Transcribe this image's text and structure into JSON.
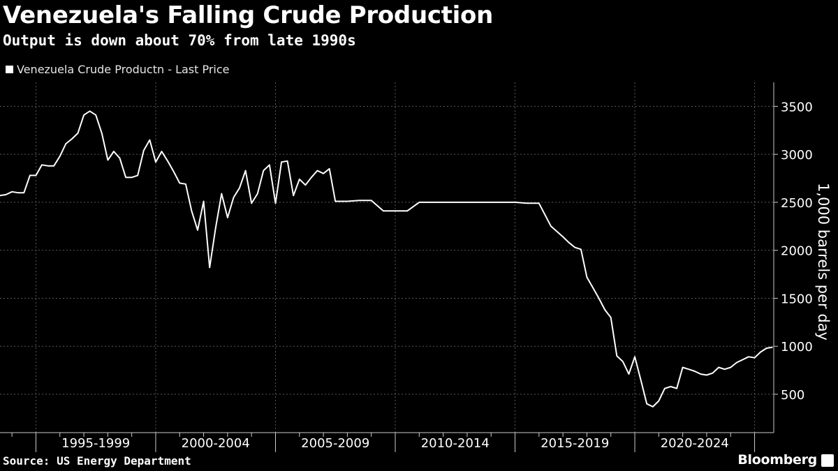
{
  "header": {
    "title": "Venezuela's Falling Crude Production",
    "subtitle": "Output is down about 70% from late 1990s"
  },
  "footer": {
    "source": "Source: US Energy Department",
    "brand": "Bloomberg"
  },
  "colors": {
    "background": "#000000",
    "line": "#ffffff",
    "grid": "#5a5a5a"
  },
  "chart_data": {
    "type": "line",
    "title": "Venezuela's Falling Crude Production",
    "subtitle": "Output is down about 70% from late 1990s",
    "ylabel": "1,000 barrels per day",
    "xlabel": "",
    "ylim": [
      100,
      3750
    ],
    "xlim": [
      1993.5,
      2025.8
    ],
    "yticks": [
      500,
      1000,
      1500,
      2000,
      2500,
      3000,
      3500
    ],
    "x_period_labels": [
      "1995-1999",
      "2000-2004",
      "2005-2009",
      "2010-2014",
      "2015-2019",
      "2020-2024"
    ],
    "grid": true,
    "legend_position": "top-left",
    "series": [
      {
        "name": "Venezuela Crude Productn - Last Price",
        "x": [
          1993.5,
          1993.75,
          1994.0,
          1994.25,
          1994.5,
          1994.75,
          1995.0,
          1995.25,
          1995.5,
          1995.75,
          1996.0,
          1996.25,
          1996.5,
          1996.75,
          1997.0,
          1997.25,
          1997.5,
          1997.75,
          1998.0,
          1998.25,
          1998.5,
          1998.75,
          1999.0,
          1999.25,
          1999.5,
          1999.75,
          2000.0,
          2000.25,
          2000.5,
          2000.75,
          2001.0,
          2001.25,
          2001.5,
          2001.75,
          2002.0,
          2002.25,
          2002.5,
          2002.75,
          2003.0,
          2003.25,
          2003.5,
          2003.75,
          2004.0,
          2004.25,
          2004.5,
          2004.75,
          2005.0,
          2005.25,
          2005.5,
          2005.75,
          2006.0,
          2006.25,
          2006.5,
          2006.75,
          2007.0,
          2007.25,
          2007.5,
          2007.75,
          2008.0,
          2008.5,
          2009.0,
          2009.5,
          2010.0,
          2010.5,
          2011.0,
          2011.25,
          2012.0,
          2013.0,
          2014.0,
          2015.0,
          2015.5,
          2016.0,
          2016.5,
          2017.0,
          2017.25,
          2017.5,
          2017.75,
          2018.0,
          2018.25,
          2018.5,
          2018.75,
          2019.0,
          2019.25,
          2019.5,
          2019.75,
          2020.0,
          2020.25,
          2020.5,
          2020.75,
          2021.0,
          2021.25,
          2021.5,
          2021.75,
          2022.0,
          2022.25,
          2022.5,
          2022.75,
          2023.0,
          2023.25,
          2023.5,
          2023.75,
          2024.0,
          2024.25,
          2024.5,
          2024.75,
          2025.0,
          2025.25,
          2025.5,
          2025.75
        ],
        "values": [
          2570,
          2580,
          2610,
          2600,
          2600,
          2780,
          2780,
          2890,
          2880,
          2880,
          2980,
          3110,
          3160,
          3220,
          3410,
          3450,
          3410,
          3220,
          2940,
          3030,
          2960,
          2760,
          2760,
          2780,
          3040,
          3150,
          2920,
          3030,
          2930,
          2820,
          2700,
          2690,
          2410,
          2210,
          2510,
          1820,
          2230,
          2590,
          2340,
          2550,
          2650,
          2830,
          2490,
          2590,
          2830,
          2890,
          2490,
          2920,
          2930,
          2570,
          2740,
          2680,
          2760,
          2830,
          2800,
          2850,
          2510,
          2510,
          2510,
          2520,
          2520,
          2410,
          2410,
          2410,
          2500,
          2500,
          2500,
          2500,
          2500,
          2500,
          2490,
          2490,
          2250,
          2140,
          2080,
          2030,
          2010,
          1720,
          1610,
          1500,
          1380,
          1300,
          900,
          840,
          710,
          890,
          650,
          400,
          370,
          430,
          560,
          580,
          560,
          780,
          760,
          740,
          710,
          700,
          720,
          780,
          760,
          780,
          830,
          860,
          890,
          880,
          940,
          980,
          990
        ]
      }
    ]
  }
}
